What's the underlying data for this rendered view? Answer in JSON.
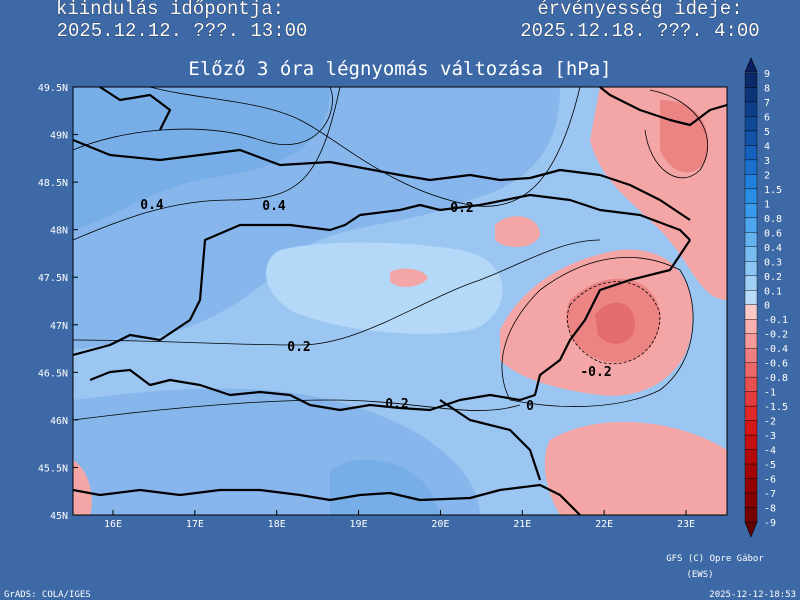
{
  "header": {
    "start_label": "kiindulás időpontja:",
    "start_time": "2025.12.12. ???. 13:00",
    "valid_label": "érvényesség ideje:",
    "valid_time": "2025.12.18. ???. 4:00"
  },
  "title": "Előző 3 óra légnyomás változása [hPa]",
  "map": {
    "lat_labels": [
      "49.5N",
      "49N",
      "48.5N",
      "48N",
      "47.5N",
      "47N",
      "46.5N",
      "46N",
      "45.5N",
      "45N"
    ],
    "lon_labels": [
      "16E",
      "17E",
      "18E",
      "19E",
      "20E",
      "21E",
      "22E",
      "23E"
    ],
    "contour_labels": [
      "0.4",
      "0.4",
      "0.2",
      "0.2",
      "0.2",
      "0",
      "-0.2"
    ]
  },
  "colorbar": {
    "labels": [
      "9",
      "8",
      "7",
      "6",
      "5",
      "4",
      "3",
      "2",
      "1.5",
      "1",
      "0.8",
      "0.6",
      "0.4",
      "0.3",
      "0.2",
      "0.1",
      "0",
      "-0.1",
      "-0.2",
      "-0.4",
      "-0.6",
      "-0.8",
      "-1",
      "-1.5",
      "-2",
      "-3",
      "-4",
      "-5",
      "-6",
      "-7",
      "-8",
      "-9"
    ],
    "colors": [
      "#0a2a6a",
      "#0c3478",
      "#0e3e88",
      "#104898",
      "#1252a8",
      "#1460bc",
      "#1a70cc",
      "#2080dc",
      "#2a8ee6",
      "#3a9aec",
      "#4ea6ee",
      "#64b2f0",
      "#78bcf2",
      "#8cc6f4",
      "#a0d0f6",
      "#b8dcf8",
      "#fcc8c8",
      "#f8b0b0",
      "#f49898",
      "#f08080",
      "#ec6868",
      "#e85050",
      "#e43c3c",
      "#e02828",
      "#d41818",
      "#c41010",
      "#b40808",
      "#a40404",
      "#940000",
      "#840000",
      "#740000"
    ]
  },
  "footer": {
    "credit": "GFS (C) Opre Gábor",
    "credit_sub": "(EWS)",
    "software": "GrADS: COLA/IGES",
    "generated": "2025-12-12-18:53"
  }
}
